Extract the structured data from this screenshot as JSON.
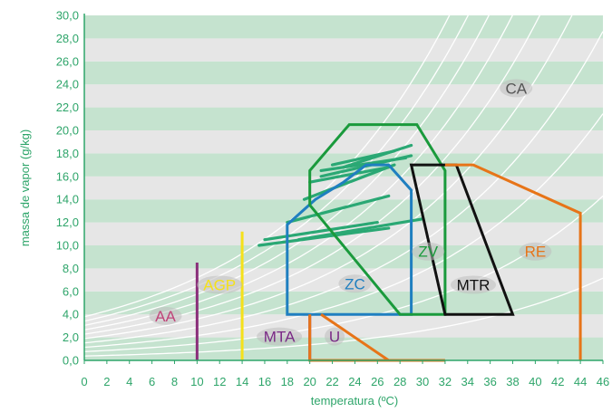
{
  "chart_data": {
    "type": "psychrometric",
    "xlabel": "temperatura (ºC)",
    "ylabel": "massa de vapor (g/kg)",
    "xlim": [
      0,
      46
    ],
    "ylim": [
      0,
      30
    ],
    "x_ticks": [
      "0",
      "2",
      "4",
      "6",
      "8",
      "10",
      "12",
      "14",
      "16",
      "18",
      "20",
      "22",
      "24",
      "26",
      "28",
      "30",
      "32",
      "34",
      "36",
      "38",
      "40",
      "42",
      "44",
      "46"
    ],
    "y_ticks": [
      "0,0",
      "2,0",
      "4,0",
      "6,0",
      "8,0",
      "10,0",
      "12,0",
      "14,0",
      "16,0",
      "18,0",
      "20,0",
      "22,0",
      "24,0",
      "26,0",
      "28,0",
      "30,0"
    ],
    "grid": true,
    "colors": {
      "band_green": "#c5e3cf",
      "band_grey": "#e6e6e6",
      "axis_green": "#2ea56a",
      "rh_curves": "#ffffff"
    },
    "rh_curves_percent": [
      10,
      20,
      30,
      40,
      50,
      60,
      70,
      80,
      90,
      100
    ],
    "zones": [
      {
        "name": "ZC",
        "color": "#1f7fc0",
        "label_color": "#1f7fc0",
        "label_at": [
          24,
          6.2
        ],
        "points": [
          [
            18,
            4
          ],
          [
            18,
            11.8
          ],
          [
            20.5,
            14
          ],
          [
            23,
            15.5
          ],
          [
            25,
            17
          ],
          [
            27,
            17
          ],
          [
            29,
            14.8
          ],
          [
            29,
            4
          ]
        ]
      },
      {
        "name": "ZV",
        "color": "#1a9a3c",
        "label_color": "#1a9a3c",
        "label_at": [
          30.5,
          9
        ],
        "points": [
          [
            20,
            13.5
          ],
          [
            20,
            16.5
          ],
          [
            23.5,
            20.5
          ],
          [
            29.5,
            20.5
          ],
          [
            32,
            16.5
          ],
          [
            32,
            4
          ],
          [
            28,
            4
          ]
        ]
      },
      {
        "name": "MTR",
        "color": "#111111",
        "label_color": "#111111",
        "label_at": [
          34.5,
          6.1
        ],
        "points": [
          [
            29,
            17
          ],
          [
            33,
            17
          ],
          [
            38,
            4
          ],
          [
            32,
            4
          ]
        ]
      },
      {
        "name": "RE",
        "color": "#e77418",
        "label_color": "#e77418",
        "label_at": [
          40,
          9
        ],
        "points": [
          [
            32,
            17
          ],
          [
            34.5,
            17
          ],
          [
            44,
            12.8
          ],
          [
            44,
            0
          ]
        ]
      },
      {
        "name": "U",
        "color": "#e77418",
        "label_color": "#7a2a86",
        "label_at": [
          22.2,
          1.6
        ],
        "points": [
          [
            20,
            4
          ],
          [
            20,
            0
          ],
          [
            32,
            0
          ],
          [
            27,
            0
          ],
          [
            21,
            4
          ]
        ]
      }
    ],
    "extra_labels": [
      {
        "name": "CA",
        "color": "#555555",
        "at": [
          38.3,
          23.2
        ]
      },
      {
        "name": "AA",
        "color": "#c0457a",
        "at": [
          7.2,
          3.4
        ]
      },
      {
        "name": "AGP",
        "color": "#f5e11a",
        "at": [
          12,
          6.1
        ]
      },
      {
        "name": "MTA",
        "color": "#7a2a86",
        "at": [
          17.3,
          1.6
        ]
      }
    ],
    "vertical_lines": [
      {
        "x": 10,
        "y_top": 8.5,
        "color": "#8a2e7a"
      },
      {
        "x": 14,
        "y_top": 11.2,
        "color": "#f5e11a"
      },
      {
        "x": 20,
        "y_top": 4,
        "color": "#7a2a86"
      }
    ],
    "ventilation_lines": [
      [
        [
          18,
          12
        ],
        [
          27,
          14.3
        ]
      ],
      [
        [
          22,
          17
        ],
        [
          27.5,
          18.2
        ]
      ],
      [
        [
          21,
          16.5
        ],
        [
          28.5,
          17.6
        ]
      ],
      [
        [
          20,
          15.5
        ],
        [
          27,
          16.8
        ]
      ],
      [
        [
          23,
          16.8
        ],
        [
          29,
          18.7
        ]
      ],
      [
        [
          19,
          10.5
        ],
        [
          30,
          12.3
        ]
      ],
      [
        [
          15.5,
          10
        ],
        [
          27,
          11.5
        ]
      ],
      [
        [
          16,
          10.5
        ],
        [
          26,
          12
        ]
      ],
      [
        [
          19.5,
          14
        ],
        [
          27.5,
          17
        ]
      ],
      [
        [
          21,
          16
        ],
        [
          29,
          17.8
        ]
      ]
    ]
  }
}
